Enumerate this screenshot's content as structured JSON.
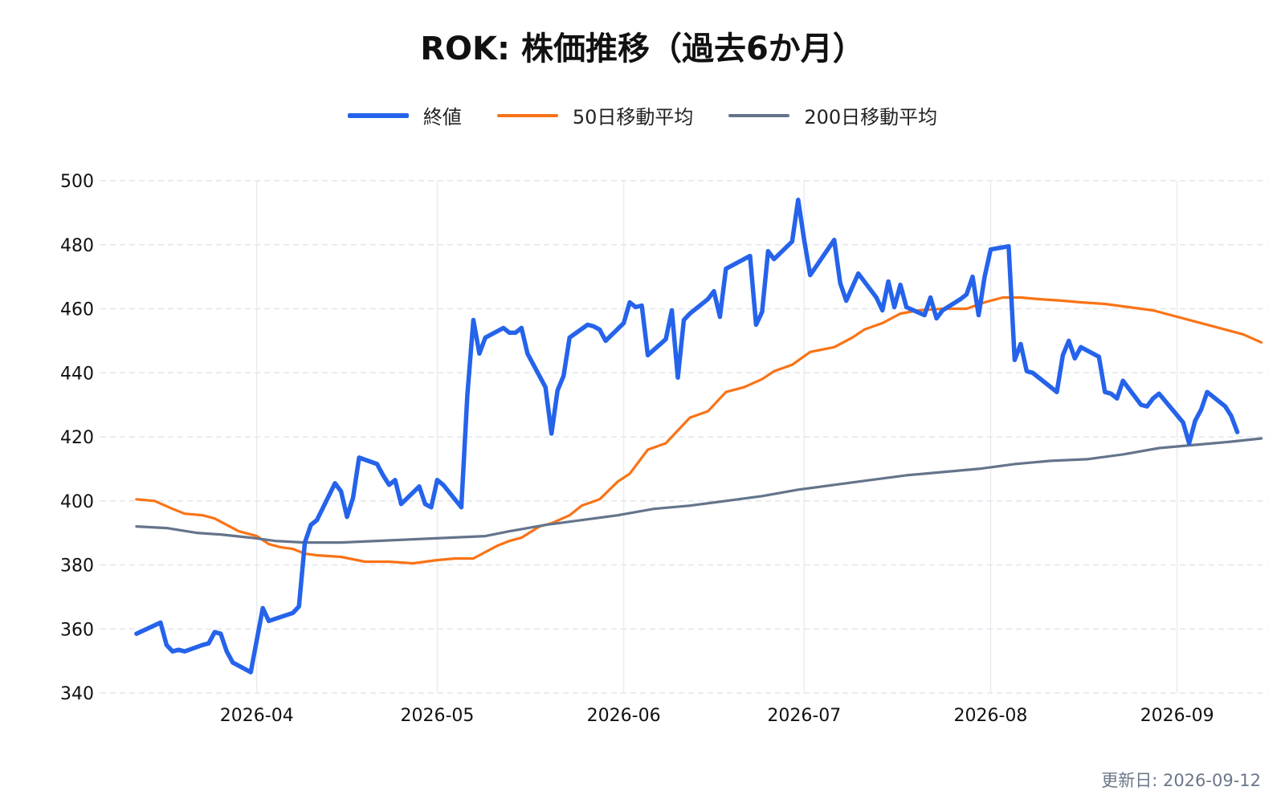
{
  "chart_data": {
    "type": "line",
    "title": "ROK: 株価推移（過去6か月）",
    "xlabel": "",
    "ylabel": "",
    "ylim": [
      340,
      500
    ],
    "y_ticks": [
      "340",
      "360",
      "380",
      "400",
      "420",
      "440",
      "460",
      "480",
      "500"
    ],
    "x_ticks": [
      "2026-04",
      "2026-05",
      "2026-06",
      "2026-07",
      "2026-08",
      "2026-09"
    ],
    "x_range": [
      "2026-03-06",
      "2026-09-16"
    ],
    "grid": true,
    "legend_position": "top-center",
    "updated_label": "更新日: 2026-09-12",
    "series": [
      {
        "name": "終値",
        "color": "#2563eb",
        "points": [
          [
            "2026-03-12",
            358.5
          ],
          [
            "2026-03-16",
            362
          ],
          [
            "2026-03-17",
            355
          ],
          [
            "2026-03-18",
            353
          ],
          [
            "2026-03-19",
            353.5
          ],
          [
            "2026-03-20",
            353
          ],
          [
            "2026-03-23",
            355
          ],
          [
            "2026-03-24",
            355.5
          ],
          [
            "2026-03-25",
            359
          ],
          [
            "2026-03-26",
            358.5
          ],
          [
            "2026-03-27",
            353
          ],
          [
            "2026-03-28",
            349.5
          ],
          [
            "2026-03-31",
            346.5
          ],
          [
            "2026-04-02",
            366.5
          ],
          [
            "2026-04-03",
            362.5
          ],
          [
            "2026-04-07",
            365
          ],
          [
            "2026-04-08",
            367
          ],
          [
            "2026-04-09",
            387
          ],
          [
            "2026-04-10",
            392.5
          ],
          [
            "2026-04-11",
            394
          ],
          [
            "2026-04-14",
            405.5
          ],
          [
            "2026-04-15",
            403
          ],
          [
            "2026-04-16",
            395
          ],
          [
            "2026-04-17",
            401
          ],
          [
            "2026-04-18",
            413.5
          ],
          [
            "2026-04-21",
            411.5
          ],
          [
            "2026-04-22",
            408
          ],
          [
            "2026-04-23",
            405
          ],
          [
            "2026-04-24",
            406.5
          ],
          [
            "2026-04-25",
            399
          ],
          [
            "2026-04-28",
            404.5
          ],
          [
            "2026-04-29",
            399
          ],
          [
            "2026-04-30",
            398
          ],
          [
            "2026-05-01",
            406.5
          ],
          [
            "2026-05-02",
            405
          ],
          [
            "2026-05-05",
            398
          ],
          [
            "2026-05-06",
            433
          ],
          [
            "2026-05-07",
            456.5
          ],
          [
            "2026-05-08",
            446
          ],
          [
            "2026-05-09",
            451
          ],
          [
            "2026-05-12",
            454
          ],
          [
            "2026-05-13",
            452.5
          ],
          [
            "2026-05-14",
            452.5
          ],
          [
            "2026-05-15",
            454
          ],
          [
            "2026-05-16",
            446
          ],
          [
            "2026-05-19",
            435.5
          ],
          [
            "2026-05-20",
            421
          ],
          [
            "2026-05-21",
            434.5
          ],
          [
            "2026-05-22",
            439
          ],
          [
            "2026-05-23",
            451
          ],
          [
            "2026-05-26",
            455
          ],
          [
            "2026-05-27",
            454.5
          ],
          [
            "2026-05-28",
            453.5
          ],
          [
            "2026-05-29",
            450
          ],
          [
            "2026-06-01",
            455.5
          ],
          [
            "2026-06-02",
            462
          ],
          [
            "2026-06-03",
            460.5
          ],
          [
            "2026-06-04",
            461
          ],
          [
            "2026-06-05",
            445.5
          ],
          [
            "2026-06-08",
            450.5
          ],
          [
            "2026-06-09",
            459.5
          ],
          [
            "2026-06-10",
            438.5
          ],
          [
            "2026-06-11",
            456.5
          ],
          [
            "2026-06-12",
            458.5
          ],
          [
            "2026-06-15",
            463
          ],
          [
            "2026-06-16",
            465.5
          ],
          [
            "2026-06-17",
            457.5
          ],
          [
            "2026-06-18",
            472.5
          ],
          [
            "2026-06-22",
            476.5
          ],
          [
            "2026-06-23",
            455
          ],
          [
            "2026-06-24",
            459
          ],
          [
            "2026-06-25",
            478
          ],
          [
            "2026-06-26",
            475.5
          ],
          [
            "2026-06-29",
            481
          ],
          [
            "2026-06-30",
            494
          ],
          [
            "2026-07-01",
            481.5
          ],
          [
            "2026-07-02",
            470.5
          ],
          [
            "2026-07-06",
            481.5
          ],
          [
            "2026-07-07",
            468
          ],
          [
            "2026-07-08",
            462.5
          ],
          [
            "2026-07-10",
            471
          ],
          [
            "2026-07-13",
            463.5
          ],
          [
            "2026-07-14",
            459.5
          ],
          [
            "2026-07-15",
            468.5
          ],
          [
            "2026-07-16",
            460.5
          ],
          [
            "2026-07-17",
            467.5
          ],
          [
            "2026-07-18",
            460.5
          ],
          [
            "2026-07-21",
            458
          ],
          [
            "2026-07-22",
            463.5
          ],
          [
            "2026-07-23",
            457
          ],
          [
            "2026-07-24",
            459.5
          ],
          [
            "2026-07-27",
            463
          ],
          [
            "2026-07-28",
            464.5
          ],
          [
            "2026-07-29",
            470
          ],
          [
            "2026-07-30",
            458
          ],
          [
            "2026-07-31",
            470
          ],
          [
            "2026-08-01",
            478.5
          ],
          [
            "2026-08-04",
            479.5
          ],
          [
            "2026-08-05",
            444
          ],
          [
            "2026-08-06",
            449
          ],
          [
            "2026-08-07",
            440.5
          ],
          [
            "2026-08-08",
            440
          ],
          [
            "2026-08-11",
            435.5
          ],
          [
            "2026-08-12",
            434
          ],
          [
            "2026-08-13",
            445.5
          ],
          [
            "2026-08-14",
            450
          ],
          [
            "2026-08-15",
            444.5
          ],
          [
            "2026-08-16",
            448
          ],
          [
            "2026-08-19",
            445
          ],
          [
            "2026-08-20",
            434
          ],
          [
            "2026-08-21",
            433.5
          ],
          [
            "2026-08-22",
            432
          ],
          [
            "2026-08-23",
            437.5
          ],
          [
            "2026-08-26",
            430
          ],
          [
            "2026-08-27",
            429.5
          ],
          [
            "2026-08-28",
            432
          ],
          [
            "2026-08-29",
            433.5
          ],
          [
            "2026-09-02",
            424.5
          ],
          [
            "2026-09-03",
            418
          ],
          [
            "2026-09-04",
            425
          ],
          [
            "2026-09-05",
            428.5
          ],
          [
            "2026-09-06",
            434
          ],
          [
            "2026-09-09",
            429.5
          ],
          [
            "2026-09-10",
            426.5
          ],
          [
            "2026-09-11",
            421.5
          ]
        ]
      },
      {
        "name": "50日移動平均",
        "color": "#f97316",
        "points": [
          [
            "2026-03-12",
            400.5
          ],
          [
            "2026-03-15",
            400
          ],
          [
            "2026-03-18",
            397.5
          ],
          [
            "2026-03-20",
            396
          ],
          [
            "2026-03-23",
            395.5
          ],
          [
            "2026-03-25",
            394.5
          ],
          [
            "2026-03-27",
            392.5
          ],
          [
            "2026-03-29",
            390.5
          ],
          [
            "2026-04-01",
            389
          ],
          [
            "2026-04-03",
            386.5
          ],
          [
            "2026-04-05",
            385.5
          ],
          [
            "2026-04-07",
            385
          ],
          [
            "2026-04-09",
            383.5
          ],
          [
            "2026-04-11",
            383
          ],
          [
            "2026-04-15",
            382.5
          ],
          [
            "2026-04-19",
            381
          ],
          [
            "2026-04-23",
            381
          ],
          [
            "2026-04-27",
            380.5
          ],
          [
            "2026-05-01",
            381.5
          ],
          [
            "2026-05-04",
            382
          ],
          [
            "2026-05-07",
            382
          ],
          [
            "2026-05-09",
            384
          ],
          [
            "2026-05-11",
            386
          ],
          [
            "2026-05-13",
            387.5
          ],
          [
            "2026-05-15",
            388.5
          ],
          [
            "2026-05-18",
            392
          ],
          [
            "2026-05-20",
            393
          ],
          [
            "2026-05-23",
            395.5
          ],
          [
            "2026-05-25",
            398.5
          ],
          [
            "2026-05-28",
            400.5
          ],
          [
            "2026-05-31",
            406
          ],
          [
            "2026-06-02",
            408.5
          ],
          [
            "2026-06-05",
            416
          ],
          [
            "2026-06-08",
            418
          ],
          [
            "2026-06-12",
            426
          ],
          [
            "2026-06-15",
            428
          ],
          [
            "2026-06-18",
            434
          ],
          [
            "2026-06-21",
            435.5
          ],
          [
            "2026-06-24",
            438
          ],
          [
            "2026-06-26",
            440.5
          ],
          [
            "2026-06-29",
            442.5
          ],
          [
            "2026-07-02",
            446.5
          ],
          [
            "2026-07-06",
            448
          ],
          [
            "2026-07-09",
            451
          ],
          [
            "2026-07-11",
            453.5
          ],
          [
            "2026-07-14",
            455.5
          ],
          [
            "2026-07-17",
            458.5
          ],
          [
            "2026-07-20",
            459.5
          ],
          [
            "2026-07-24",
            460
          ],
          [
            "2026-07-28",
            460
          ],
          [
            "2026-07-31",
            462
          ],
          [
            "2026-08-03",
            463.5
          ],
          [
            "2026-08-06",
            463.5
          ],
          [
            "2026-08-09",
            463
          ],
          [
            "2026-08-13",
            462.5
          ],
          [
            "2026-08-16",
            462
          ],
          [
            "2026-08-20",
            461.5
          ],
          [
            "2026-08-24",
            460.5
          ],
          [
            "2026-08-28",
            459.5
          ],
          [
            "2026-09-01",
            457.5
          ],
          [
            "2026-09-04",
            456
          ],
          [
            "2026-09-07",
            454.5
          ],
          [
            "2026-09-10",
            453
          ],
          [
            "2026-09-12",
            452
          ],
          [
            "2026-09-15",
            449.5
          ]
        ]
      },
      {
        "name": "200日移動平均",
        "color": "#64748b",
        "points": [
          [
            "2026-03-12",
            392
          ],
          [
            "2026-03-17",
            391.5
          ],
          [
            "2026-03-22",
            390
          ],
          [
            "2026-03-26",
            389.5
          ],
          [
            "2026-03-31",
            388.5
          ],
          [
            "2026-04-04",
            387.5
          ],
          [
            "2026-04-09",
            387
          ],
          [
            "2026-04-15",
            387
          ],
          [
            "2026-04-21",
            387.5
          ],
          [
            "2026-04-27",
            388
          ],
          [
            "2026-05-03",
            388.5
          ],
          [
            "2026-05-09",
            389
          ],
          [
            "2026-05-13",
            390.5
          ],
          [
            "2026-05-19",
            392.5
          ],
          [
            "2026-05-25",
            394
          ],
          [
            "2026-05-31",
            395.5
          ],
          [
            "2026-06-06",
            397.5
          ],
          [
            "2026-06-12",
            398.5
          ],
          [
            "2026-06-18",
            400
          ],
          [
            "2026-06-24",
            401.5
          ],
          [
            "2026-06-30",
            403.5
          ],
          [
            "2026-07-06",
            405
          ],
          [
            "2026-07-12",
            406.5
          ],
          [
            "2026-07-18",
            408
          ],
          [
            "2026-07-24",
            409
          ],
          [
            "2026-07-30",
            410
          ],
          [
            "2026-08-05",
            411.5
          ],
          [
            "2026-08-11",
            412.5
          ],
          [
            "2026-08-17",
            413
          ],
          [
            "2026-08-23",
            414.5
          ],
          [
            "2026-08-29",
            416.5
          ],
          [
            "2026-09-04",
            417.5
          ],
          [
            "2026-09-10",
            418.5
          ],
          [
            "2026-09-15",
            419.5
          ]
        ]
      }
    ]
  }
}
